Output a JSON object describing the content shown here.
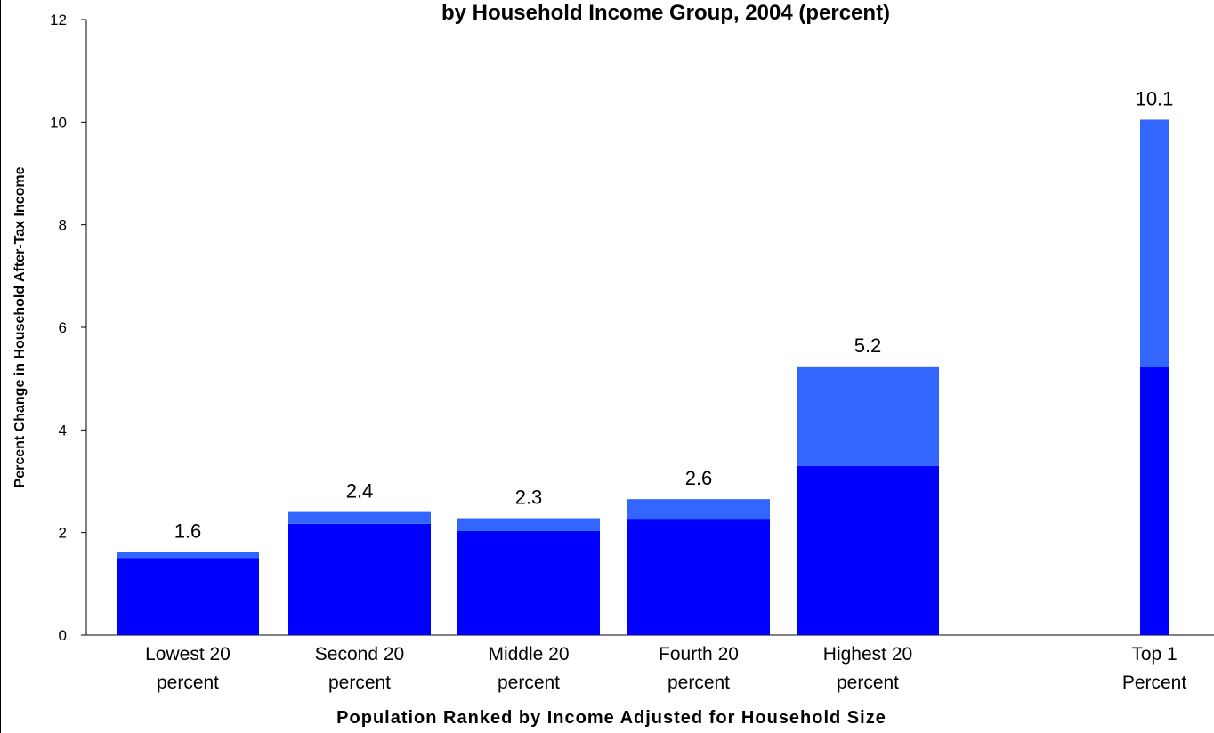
{
  "chart_data": {
    "type": "bar",
    "title": "by Household Income Group, 2004 (percent)",
    "xlabel": "Population Ranked by Income Adjusted for Household Size",
    "ylabel": "Percent Change in Household After-Tax Income",
    "ylim": [
      0,
      12
    ],
    "yticks": [
      "0",
      "2",
      "4",
      "6",
      "8",
      "10",
      "12"
    ],
    "grid": false,
    "stacked": true,
    "categories": [
      [
        "Lowest 20",
        "percent"
      ],
      [
        "Second 20",
        "percent"
      ],
      [
        "Middle 20",
        "percent"
      ],
      [
        "Fourth 20",
        "percent"
      ],
      [
        "Highest 20",
        "percent"
      ],
      [
        "Top 1",
        "Percent"
      ]
    ],
    "series": [
      {
        "values": [
          1.5,
          2.17,
          2.03,
          2.27,
          3.3,
          5.23
        ],
        "color": "#0000ff"
      },
      {
        "values": [
          0.12,
          0.23,
          0.25,
          0.38,
          1.94,
          4.82
        ],
        "color": "#3366ff"
      }
    ],
    "totals_labels": [
      "1.6",
      "2.4",
      "2.3",
      "2.6",
      "5.2",
      "10.1"
    ]
  }
}
